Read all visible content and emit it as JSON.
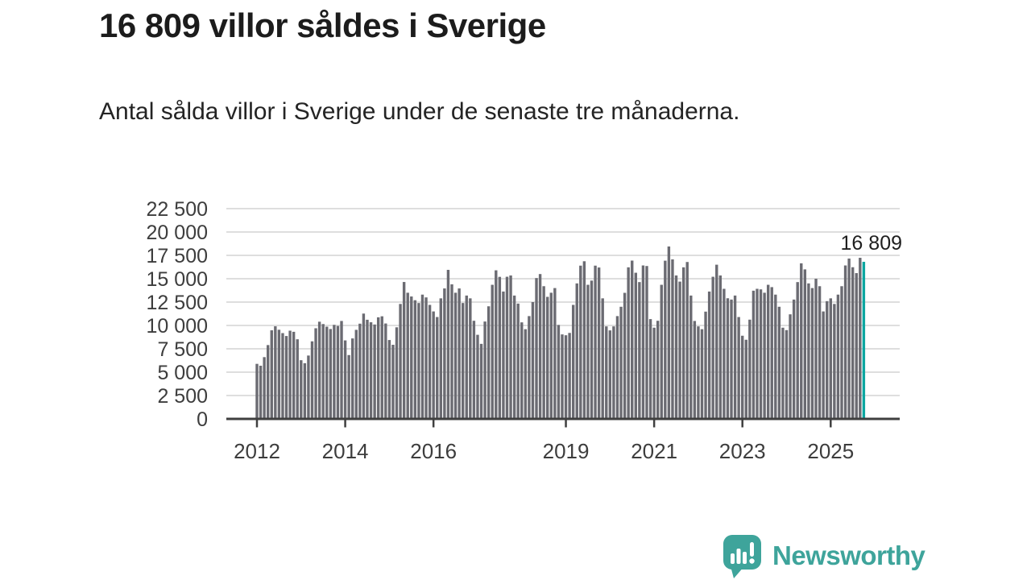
{
  "header": {
    "title": "16 809 villor såldes i Sverige",
    "subtitle": "Antal sålda villor i Sverige under de senaste tre månaderna."
  },
  "chart_data": {
    "type": "bar",
    "title": "16 809 villor såldes i Sverige",
    "xlabel": "",
    "ylabel": "",
    "ylim": [
      0,
      22500
    ],
    "grid": true,
    "frequency": "monthly",
    "x_start_year": 2012,
    "x_start": "2012-01",
    "x_end": "2025-10",
    "y_ticks": [
      {
        "value": 0,
        "label": "0"
      },
      {
        "value": 2500,
        "label": "2 500"
      },
      {
        "value": 5000,
        "label": "5 000"
      },
      {
        "value": 7500,
        "label": "7 500"
      },
      {
        "value": 10000,
        "label": "10 000"
      },
      {
        "value": 12500,
        "label": "12 500"
      },
      {
        "value": 15000,
        "label": "15 000"
      },
      {
        "value": 17500,
        "label": "17 500"
      },
      {
        "value": 20000,
        "label": "20 000"
      },
      {
        "value": 22500,
        "label": "22 500"
      }
    ],
    "x_ticks": [
      {
        "year": 2012,
        "label": "2012"
      },
      {
        "year": 2014,
        "label": "2014"
      },
      {
        "year": 2016,
        "label": "2016"
      },
      {
        "year": 2019,
        "label": "2019"
      },
      {
        "year": 2021,
        "label": "2021"
      },
      {
        "year": 2023,
        "label": "2023"
      },
      {
        "year": 2025,
        "label": "2025"
      }
    ],
    "annotation": {
      "label": "16 809",
      "value": 16809
    },
    "highlight_last": true,
    "colors": {
      "bar": "#6b6b72",
      "highlight": "#0ba6a1",
      "grid": "#dedede",
      "axis": "#3f3f3f",
      "tick_text": "#3d3d3d",
      "annotation_text": "#1f1f1f"
    },
    "values": [
      5890,
      5690,
      6610,
      7900,
      9480,
      9910,
      9540,
      9180,
      8870,
      9440,
      9320,
      8520,
      6280,
      5960,
      6780,
      8300,
      9700,
      10400,
      10150,
      9870,
      9620,
      10060,
      9950,
      10480,
      8400,
      6830,
      8610,
      9530,
      10190,
      11270,
      10610,
      10340,
      10100,
      10870,
      10980,
      10210,
      8440,
      7930,
      9800,
      12300,
      14650,
      13500,
      13100,
      12700,
      12400,
      13300,
      13000,
      12200,
      11500,
      10900,
      12900,
      13960,
      15950,
      14400,
      13500,
      13960,
      12400,
      13200,
      12900,
      10500,
      9000,
      8030,
      10420,
      12050,
      14350,
      15900,
      15200,
      13630,
      15210,
      15350,
      13200,
      12340,
      10330,
      9600,
      11000,
      12500,
      15070,
      15500,
      14200,
      13060,
      13500,
      14000,
      10050,
      9040,
      8950,
      9200,
      12200,
      14500,
      16400,
      16870,
      14350,
      14800,
      16400,
      16200,
      12900,
      9900,
      9470,
      9900,
      11000,
      12000,
      13490,
      16220,
      16940,
      15640,
      14640,
      16420,
      16360,
      10680,
      9760,
      10500,
      14350,
      16930,
      18450,
      17070,
      15350,
      14690,
      16220,
      16790,
      13200,
      10480,
      9900,
      9600,
      11480,
      13630,
      15210,
      16500,
      15350,
      13920,
      12910,
      12770,
      13200,
      10900,
      8900,
      8470,
      10620,
      13720,
      13920,
      13860,
      13500,
      14350,
      14100,
      13300,
      12000,
      9760,
      9500,
      11190,
      12770,
      14640,
      16650,
      16000,
      14500,
      14000,
      15000,
      14200,
      11500,
      12600,
      12900,
      12300,
      13300,
      14200,
      16420,
      17160,
      16230,
      15600,
      17240,
      16809
    ]
  },
  "footer": {
    "brand": "Newsworthy",
    "brand_color": "#3ea49b"
  }
}
